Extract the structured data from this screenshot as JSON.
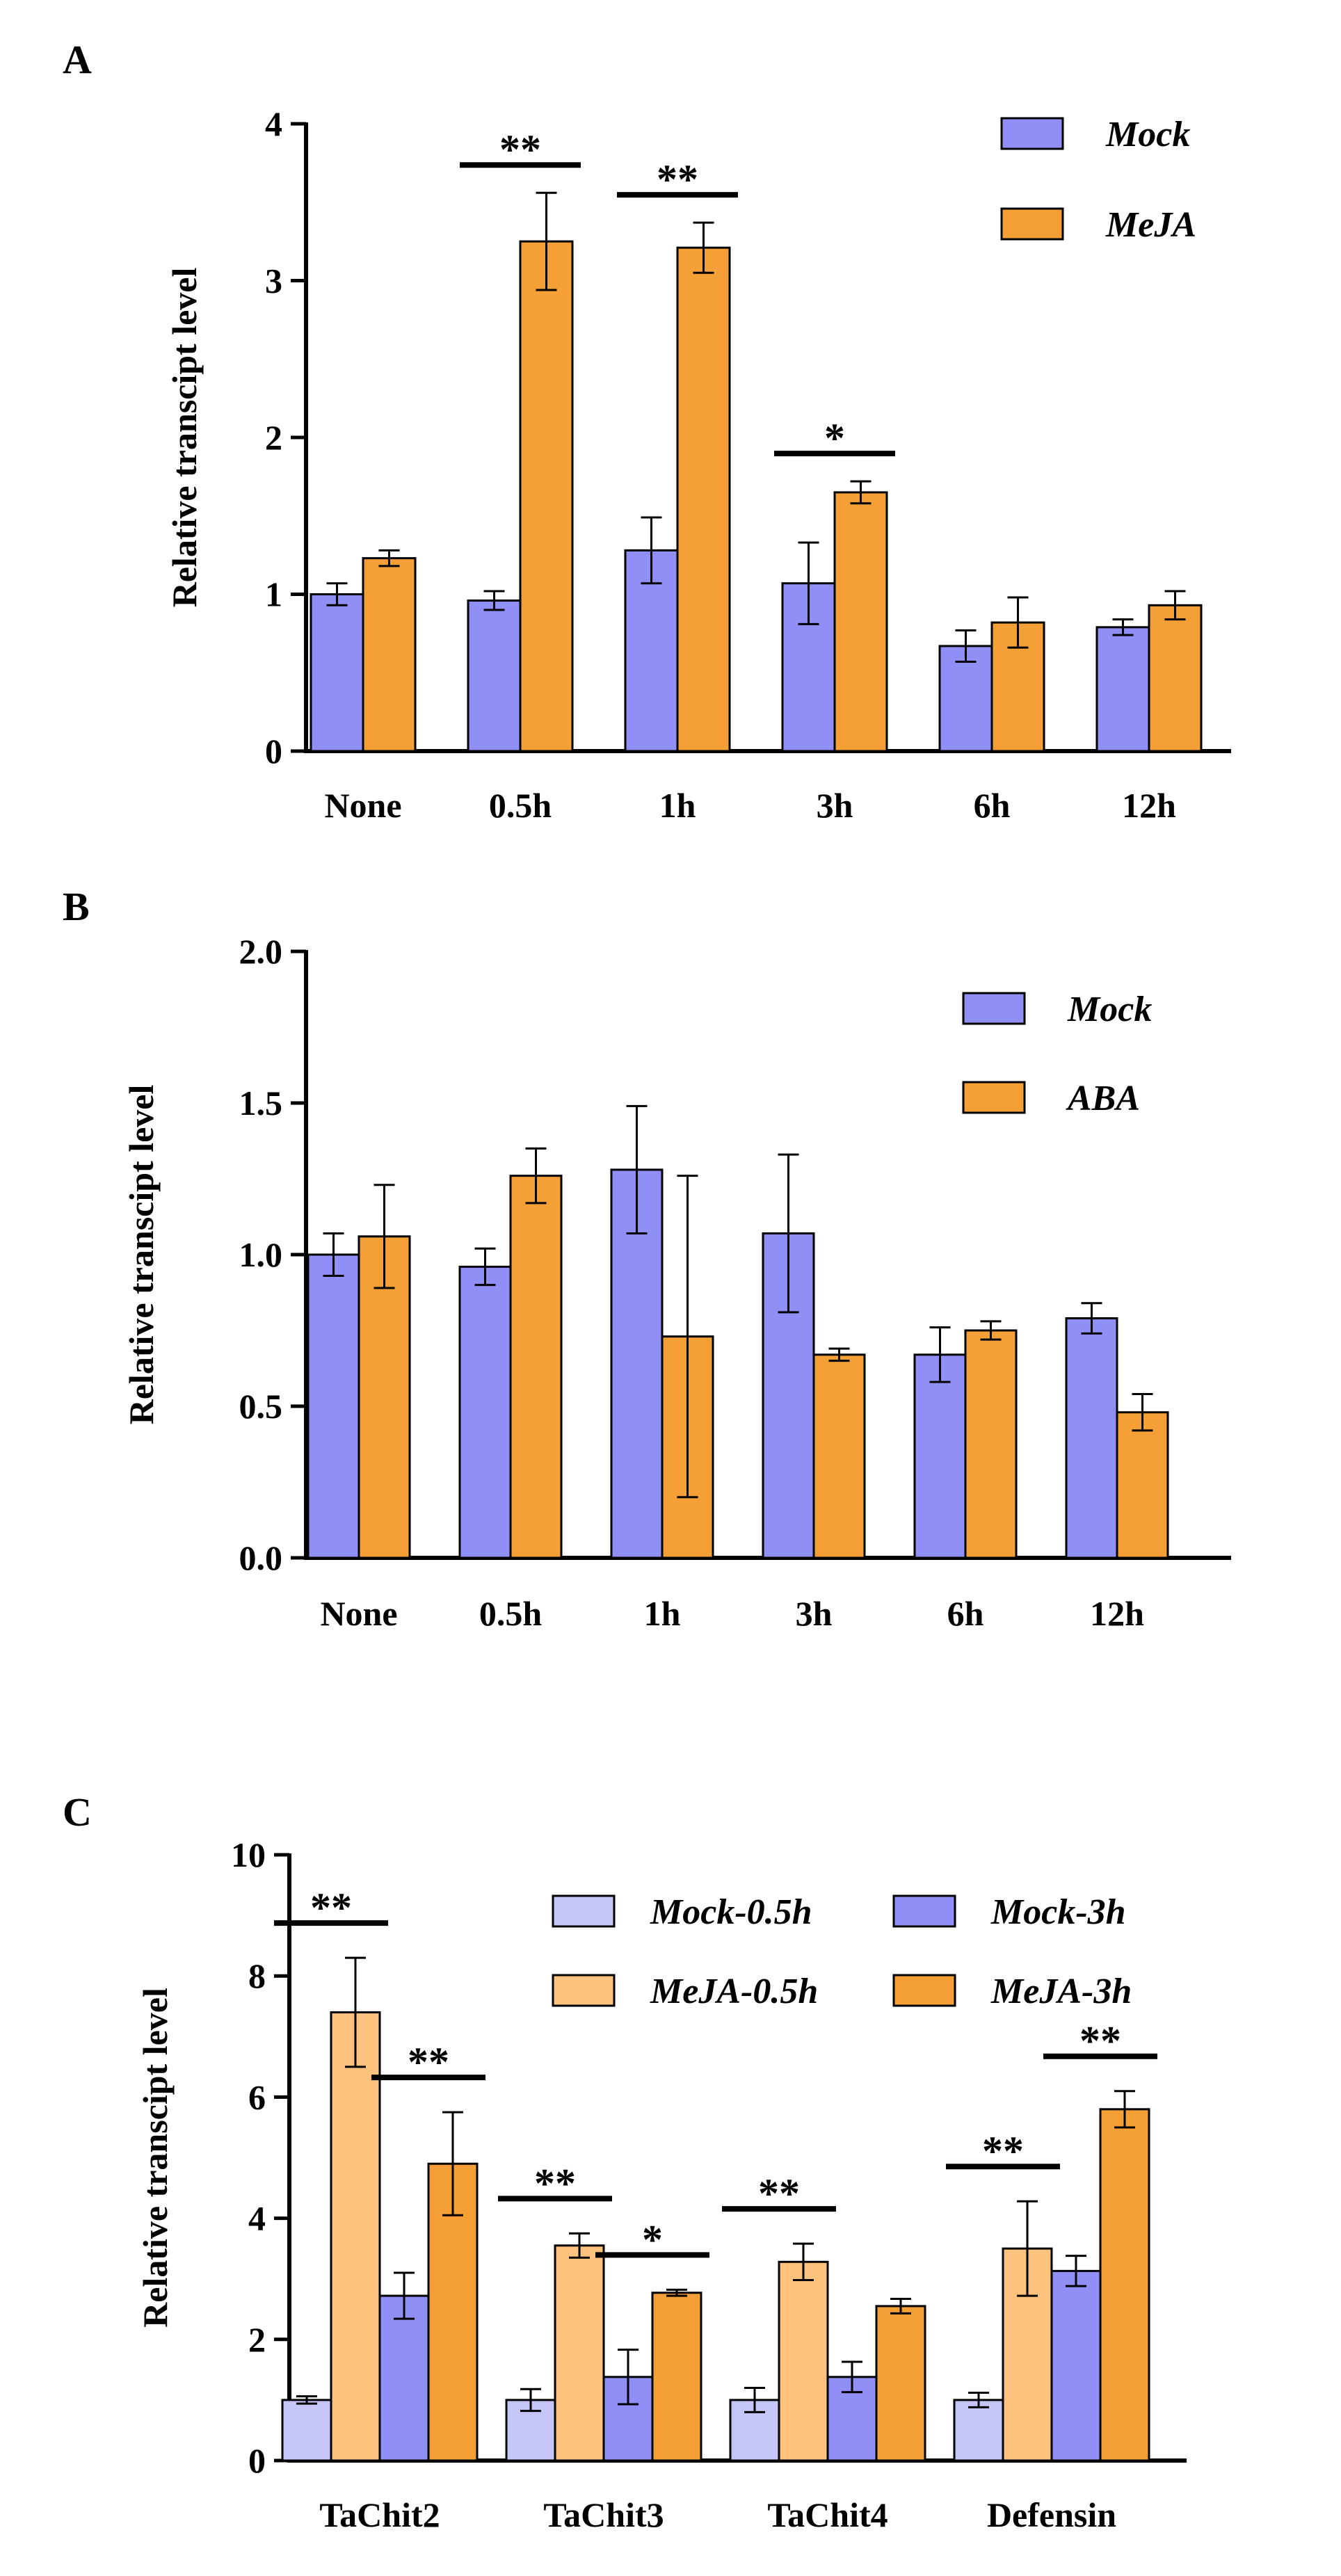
{
  "colors": {
    "mock": "#8f8ff5",
    "treat": "#f5a036",
    "mock_light": "#c5c5f7",
    "treat_light": "#fcc27e",
    "axis": "#000000"
  },
  "chart_data": [
    {
      "panel_label": "A",
      "type": "bar",
      "title": "",
      "xlabel": "",
      "ylabel": "Relative transcipt level",
      "ylim": [
        0,
        4
      ],
      "yticks": [
        "0",
        "1",
        "2",
        "3",
        "4"
      ],
      "categories": [
        "None",
        "0.5h",
        "1h",
        "3h",
        "6h",
        "12h"
      ],
      "legend_position": "top-right",
      "series": [
        {
          "name": "Mock",
          "color_key": "mock",
          "values": [
            1.0,
            0.96,
            1.28,
            1.07,
            0.67,
            0.79
          ],
          "errors": [
            0.07,
            0.06,
            0.21,
            0.26,
            0.1,
            0.05
          ]
        },
        {
          "name": "MeJA",
          "color_key": "treat",
          "values": [
            1.23,
            3.25,
            3.21,
            1.65,
            0.82,
            0.93
          ],
          "errors": [
            0.05,
            0.31,
            0.16,
            0.07,
            0.16,
            0.09
          ]
        }
      ],
      "significance": [
        {
          "group": 1,
          "label": "**"
        },
        {
          "group": 2,
          "label": "**"
        },
        {
          "group": 3,
          "label": "*"
        }
      ]
    },
    {
      "panel_label": "B",
      "type": "bar",
      "title": "",
      "xlabel": "",
      "ylabel": "Relative transcipt level",
      "ylim": [
        0,
        2
      ],
      "yticks": [
        "0.0",
        "0.5",
        "1.0",
        "1.5",
        "2.0"
      ],
      "categories": [
        "None",
        "0.5h",
        "1h",
        "3h",
        "6h",
        "12h"
      ],
      "legend_position": "top-right",
      "series": [
        {
          "name": "Mock",
          "color_key": "mock",
          "values": [
            1.0,
            0.96,
            1.28,
            1.07,
            0.67,
            0.79
          ],
          "errors": [
            0.07,
            0.06,
            0.21,
            0.26,
            0.09,
            0.05
          ]
        },
        {
          "name": "ABA",
          "color_key": "treat",
          "values": [
            1.06,
            1.26,
            0.73,
            0.67,
            0.75,
            0.48
          ],
          "errors": [
            0.17,
            0.09,
            0.53,
            0.02,
            0.03,
            0.06
          ]
        }
      ],
      "significance": []
    },
    {
      "panel_label": "C",
      "type": "bar",
      "title": "",
      "xlabel": "",
      "ylabel": "Relative transcipt level",
      "ylim": [
        0,
        10
      ],
      "yticks": [
        "0",
        "2",
        "4",
        "6",
        "8",
        "10"
      ],
      "categories": [
        "TaChit2",
        "TaChit3",
        "TaChit4",
        "Defensin"
      ],
      "legend_position": "top-right",
      "series": [
        {
          "name": "Mock-0.5h",
          "color_key": "mock_light",
          "values": [
            1.0,
            1.0,
            1.0,
            1.0
          ],
          "errors": [
            0.06,
            0.18,
            0.2,
            0.12
          ]
        },
        {
          "name": "MeJA-0.5h",
          "color_key": "treat_light",
          "values": [
            7.4,
            3.55,
            3.28,
            3.5
          ],
          "errors": [
            0.9,
            0.2,
            0.3,
            0.78
          ]
        },
        {
          "name": "Mock-3h",
          "color_key": "mock",
          "values": [
            2.72,
            1.38,
            1.38,
            3.13
          ],
          "errors": [
            0.38,
            0.45,
            0.25,
            0.25
          ]
        },
        {
          "name": "MeJA-3h",
          "color_key": "treat",
          "values": [
            4.9,
            2.77,
            2.55,
            5.8
          ],
          "errors": [
            0.85,
            0.05,
            0.12,
            0.3
          ]
        }
      ],
      "significance": [
        {
          "group": 0,
          "from_bar": 0,
          "to_bar": 1,
          "label": "**"
        },
        {
          "group": 0,
          "from_bar": 2,
          "to_bar": 3,
          "label": "**"
        },
        {
          "group": 1,
          "from_bar": 0,
          "to_bar": 1,
          "label": "**"
        },
        {
          "group": 1,
          "from_bar": 2,
          "to_bar": 3,
          "label": "*"
        },
        {
          "group": 2,
          "from_bar": 0,
          "to_bar": 1,
          "label": "**"
        },
        {
          "group": 3,
          "from_bar": 0,
          "to_bar": 1,
          "label": "**"
        },
        {
          "group": 3,
          "from_bar": 2,
          "to_bar": 3,
          "label": "**"
        }
      ]
    }
  ]
}
